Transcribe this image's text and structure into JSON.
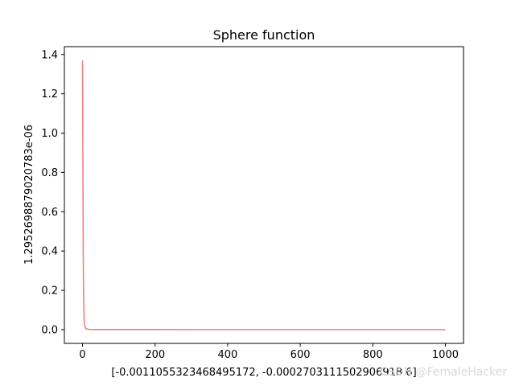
{
  "chart_data": {
    "type": "line",
    "title": "Sphere function",
    "xlabel": "[-0.0011055323468495172, -0.0002703111502906918 6]",
    "ylabel": "1.2952698879020783e-06",
    "xlim": [
      -50,
      1050
    ],
    "ylim": [
      -0.07,
      1.44
    ],
    "grid": false,
    "legend": "none",
    "x_ticks": [
      0,
      200,
      400,
      600,
      800,
      1000
    ],
    "x_tick_labels": [
      "0",
      "200",
      "400",
      "600",
      "800",
      "1000"
    ],
    "y_ticks": [
      0.0,
      0.2,
      0.4,
      0.6,
      0.8,
      1.0,
      1.2,
      1.4
    ],
    "y_tick_labels": [
      "0.0",
      "0.2",
      "0.4",
      "0.6",
      "0.8",
      "1.0",
      "1.2",
      "1.4"
    ],
    "series": [
      {
        "color": "#f08080",
        "x": [
          0,
          1,
          2,
          3,
          4,
          5,
          6,
          8,
          10,
          15,
          20,
          50,
          100,
          200,
          400,
          600,
          800,
          1000
        ],
        "y": [
          1.37,
          0.85,
          0.37,
          0.18,
          0.08,
          0.03,
          0.02,
          0.01,
          0.004,
          0.002,
          0.001,
          0.0005,
          0.0003,
          0.0002,
          0.0001,
          0.0001,
          0.0001,
          0.0001
        ]
      }
    ]
  },
  "watermark": "CSDN @FemaleHacker"
}
